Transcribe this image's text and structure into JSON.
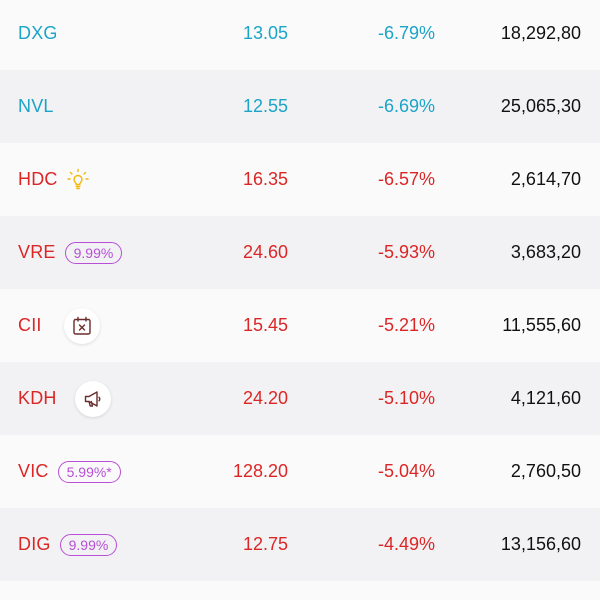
{
  "colors": {
    "down_blue": "#1aa5c8",
    "down_red": "#dc2626",
    "volume": "#111111",
    "badge_purple": "#b84fd6",
    "bulb_yellow": "#f2b705",
    "icon_dark": "#6b2c2c"
  },
  "rows": [
    {
      "symbol": "DXG",
      "price": "13.05",
      "change": "-6.79%",
      "volume": "18,292,80",
      "color": "#1aa5c8"
    },
    {
      "symbol": "NVL",
      "price": "12.55",
      "change": "-6.69%",
      "volume": "25,065,30",
      "color": "#1aa5c8"
    },
    {
      "symbol": "HDC",
      "price": "16.35",
      "change": "-6.57%",
      "volume": "2,614,70",
      "color": "#dc2626",
      "icon": "lightbulb-icon"
    },
    {
      "symbol": "VRE",
      "price": "24.60",
      "change": "-5.93%",
      "volume": "3,683,20",
      "color": "#dc2626",
      "badge": "9.99%"
    },
    {
      "symbol": "CII",
      "price": "15.45",
      "change": "-5.21%",
      "volume": "11,555,60",
      "color": "#dc2626",
      "icon": "calendar-x-icon"
    },
    {
      "symbol": "KDH",
      "price": "24.20",
      "change": "-5.10%",
      "volume": "4,121,60",
      "color": "#dc2626",
      "icon": "megaphone-icon"
    },
    {
      "symbol": "VIC",
      "price": "128.20",
      "change": "-5.04%",
      "volume": "2,760,50",
      "color": "#dc2626",
      "badge": "5.99%*"
    },
    {
      "symbol": "DIG",
      "price": "12.75",
      "change": "-4.49%",
      "volume": "13,156,60",
      "color": "#dc2626",
      "badge": "9.99%"
    }
  ]
}
